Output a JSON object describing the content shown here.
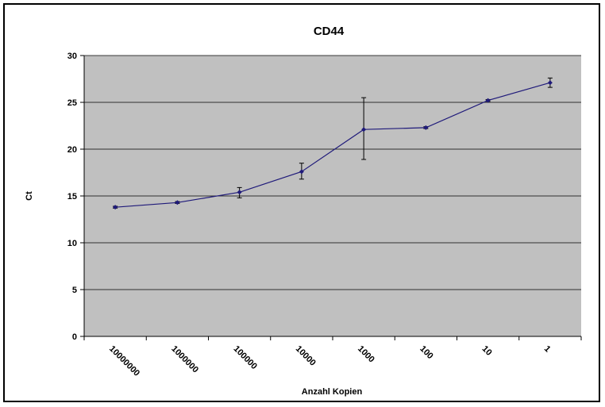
{
  "chart_data": {
    "type": "line",
    "title": "CD44",
    "xlabel": "Anzahl Kopien",
    "ylabel": "Ct",
    "categories": [
      "10000000",
      "1000000",
      "100000",
      "10000",
      "1000",
      "100",
      "10",
      "1"
    ],
    "series": [
      {
        "values": [
          13.8,
          14.3,
          15.4,
          17.6,
          22.1,
          22.3,
          25.2,
          27.1
        ],
        "error_low": [
          13.7,
          14.2,
          14.8,
          16.8,
          18.9,
          22.2,
          25.1,
          26.6
        ],
        "error_high": [
          13.9,
          14.4,
          15.9,
          18.5,
          25.5,
          22.4,
          25.3,
          27.6
        ],
        "color": "#1f1a7a"
      }
    ],
    "ylim": [
      0,
      30
    ],
    "yticks": [
      0,
      5,
      10,
      15,
      20,
      25,
      30
    ],
    "grid": true,
    "legend": "none",
    "plot_background": "#c0c0c0",
    "gridline_color": "#000000"
  }
}
